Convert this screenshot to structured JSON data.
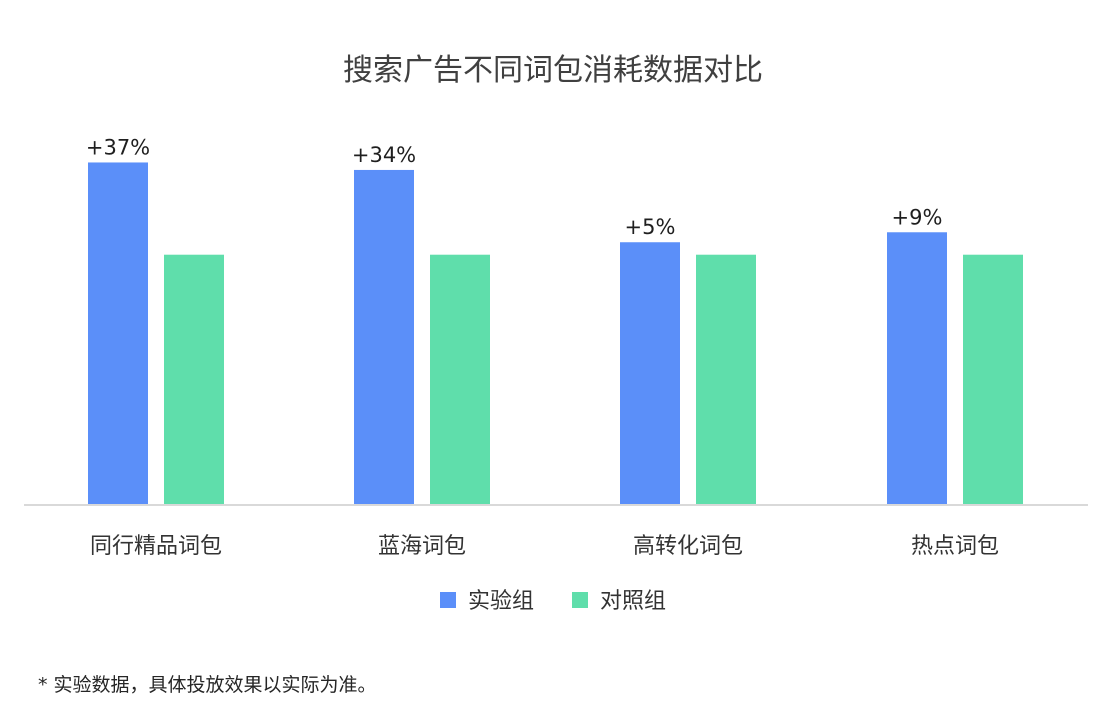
{
  "chart_data": {
    "type": "bar",
    "title": "搜索广告不同词包消耗数据对比",
    "categories": [
      "同行精品词包",
      "蓝海词包",
      "高转化词包",
      "热点词包"
    ],
    "series": [
      {
        "name": "实验组",
        "color": "#5b8ff9",
        "values": [
          137,
          134,
          105,
          109
        ],
        "labels": [
          "+37%",
          "+34%",
          "+5%",
          "+9%"
        ]
      },
      {
        "name": "对照组",
        "color": "#5fdeab",
        "values": [
          100,
          100,
          100,
          100
        ]
      }
    ],
    "ylim": [
      0,
      142
    ],
    "xlabel": "",
    "ylabel": "",
    "grid": false,
    "legend_position": "bottom"
  },
  "footnote": "* 实验数据，具体投放效果以实际为准。"
}
